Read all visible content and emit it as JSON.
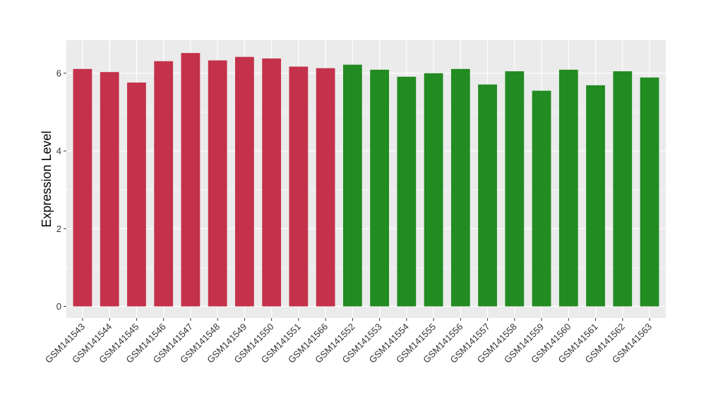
{
  "chart_data": {
    "type": "bar",
    "ylabel": "Expression Level",
    "xlabel": "",
    "title": "",
    "ylim": [
      -0.3,
      6.85
    ],
    "yticks": [
      0,
      2,
      4,
      6
    ],
    "grid": true,
    "legend": "none",
    "colors": {
      "group_a": "#C4314B",
      "group_b": "#228B22",
      "panel": "#EBEBEB",
      "grid": "#FFFFFF",
      "tick": "#333333"
    },
    "categories": [
      "GSM141543",
      "GSM141544",
      "GSM141545",
      "GSM141546",
      "GSM141547",
      "GSM141548",
      "GSM141549",
      "GSM141550",
      "GSM141551",
      "GSM141566",
      "GSM141552",
      "GSM141553",
      "GSM141554",
      "GSM141555",
      "GSM141556",
      "GSM141557",
      "GSM141558",
      "GSM141559",
      "GSM141560",
      "GSM141561",
      "GSM141562",
      "GSM141563"
    ],
    "values": [
      6.11,
      6.03,
      5.76,
      6.31,
      6.52,
      6.33,
      6.42,
      6.38,
      6.17,
      6.13,
      6.22,
      6.09,
      5.91,
      6.0,
      6.11,
      5.71,
      6.05,
      5.55,
      6.09,
      5.69,
      6.05,
      5.89
    ],
    "groups": [
      "a",
      "a",
      "a",
      "a",
      "a",
      "a",
      "a",
      "a",
      "a",
      "a",
      "b",
      "b",
      "b",
      "b",
      "b",
      "b",
      "b",
      "b",
      "b",
      "b",
      "b",
      "b"
    ]
  }
}
